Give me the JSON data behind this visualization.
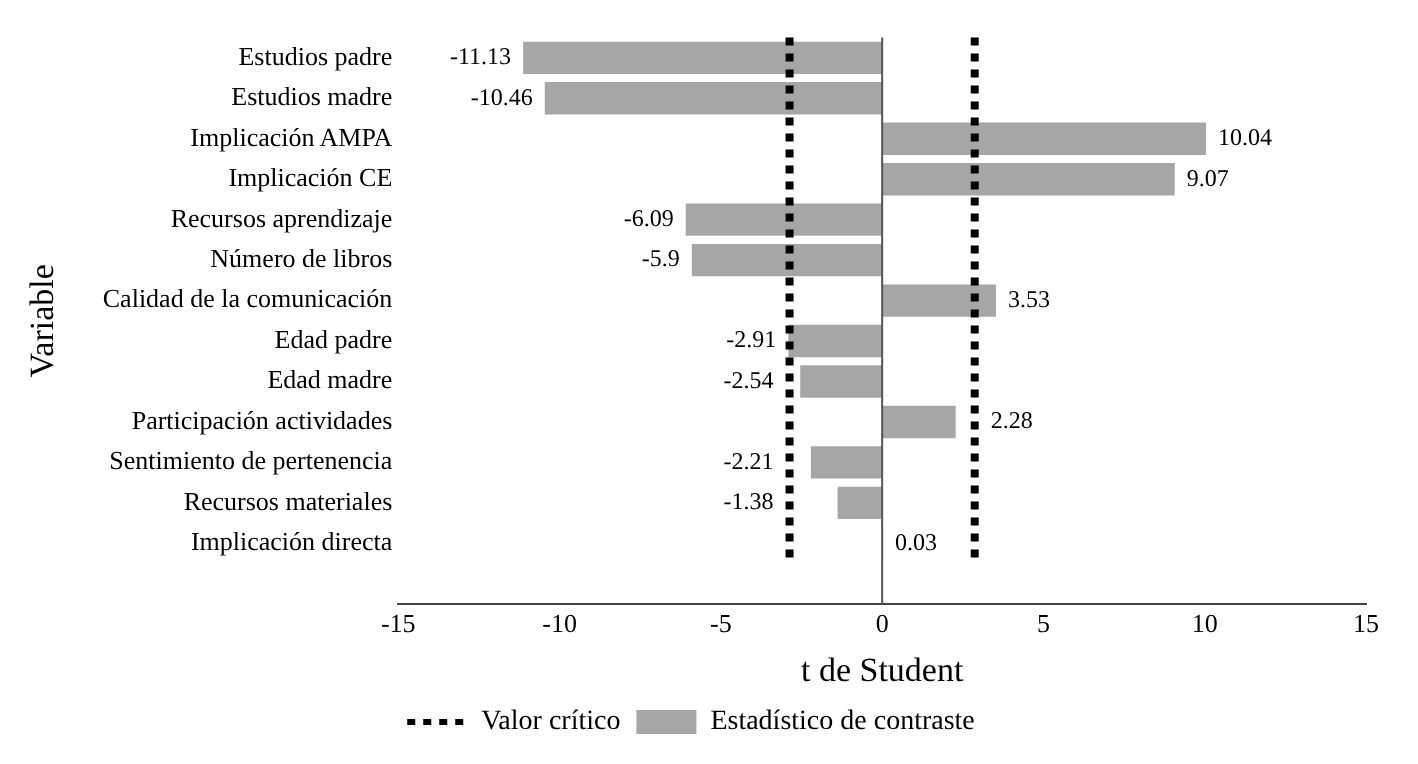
{
  "chart_data": {
    "type": "bar",
    "orientation": "horizontal",
    "xlabel": "t de Student",
    "ylabel": "Variable",
    "categories": [
      "Estudios padre",
      "Estudios madre",
      "Implicación AMPA",
      "Implicación CE",
      "Recursos aprendizaje",
      "Número de libros",
      "Calidad de la comunicación",
      "Edad padre",
      "Edad madre",
      "Participación actividades",
      "Sentimiento de pertenencia",
      "Recursos materiales",
      "Implicación directa",
      null
    ],
    "series": [
      {
        "name": "Estadístico de contraste",
        "color": "#a6a6a6",
        "values": [
          -11.13,
          -10.46,
          10.04,
          9.07,
          -6.09,
          -5.9,
          3.53,
          -2.91,
          -2.54,
          2.28,
          -2.21,
          -1.38,
          0.03,
          null
        ]
      }
    ],
    "xlim": [
      -15,
      15
    ],
    "xticks": [
      -15,
      -10,
      -5,
      0,
      5,
      10,
      15
    ],
    "ref_lines": [
      {
        "axis": "x",
        "value": -2.87,
        "label": "Valor crítico",
        "color": "#000000",
        "line_style": "dotted"
      },
      {
        "axis": "x",
        "value": 2.87,
        "color": "#000000",
        "line_style": "dotted"
      },
      {
        "axis": "x",
        "value": 0,
        "color": "#555555",
        "line_style": "solid"
      }
    ],
    "data_labels": true,
    "grid": false,
    "legend": "bottom"
  }
}
